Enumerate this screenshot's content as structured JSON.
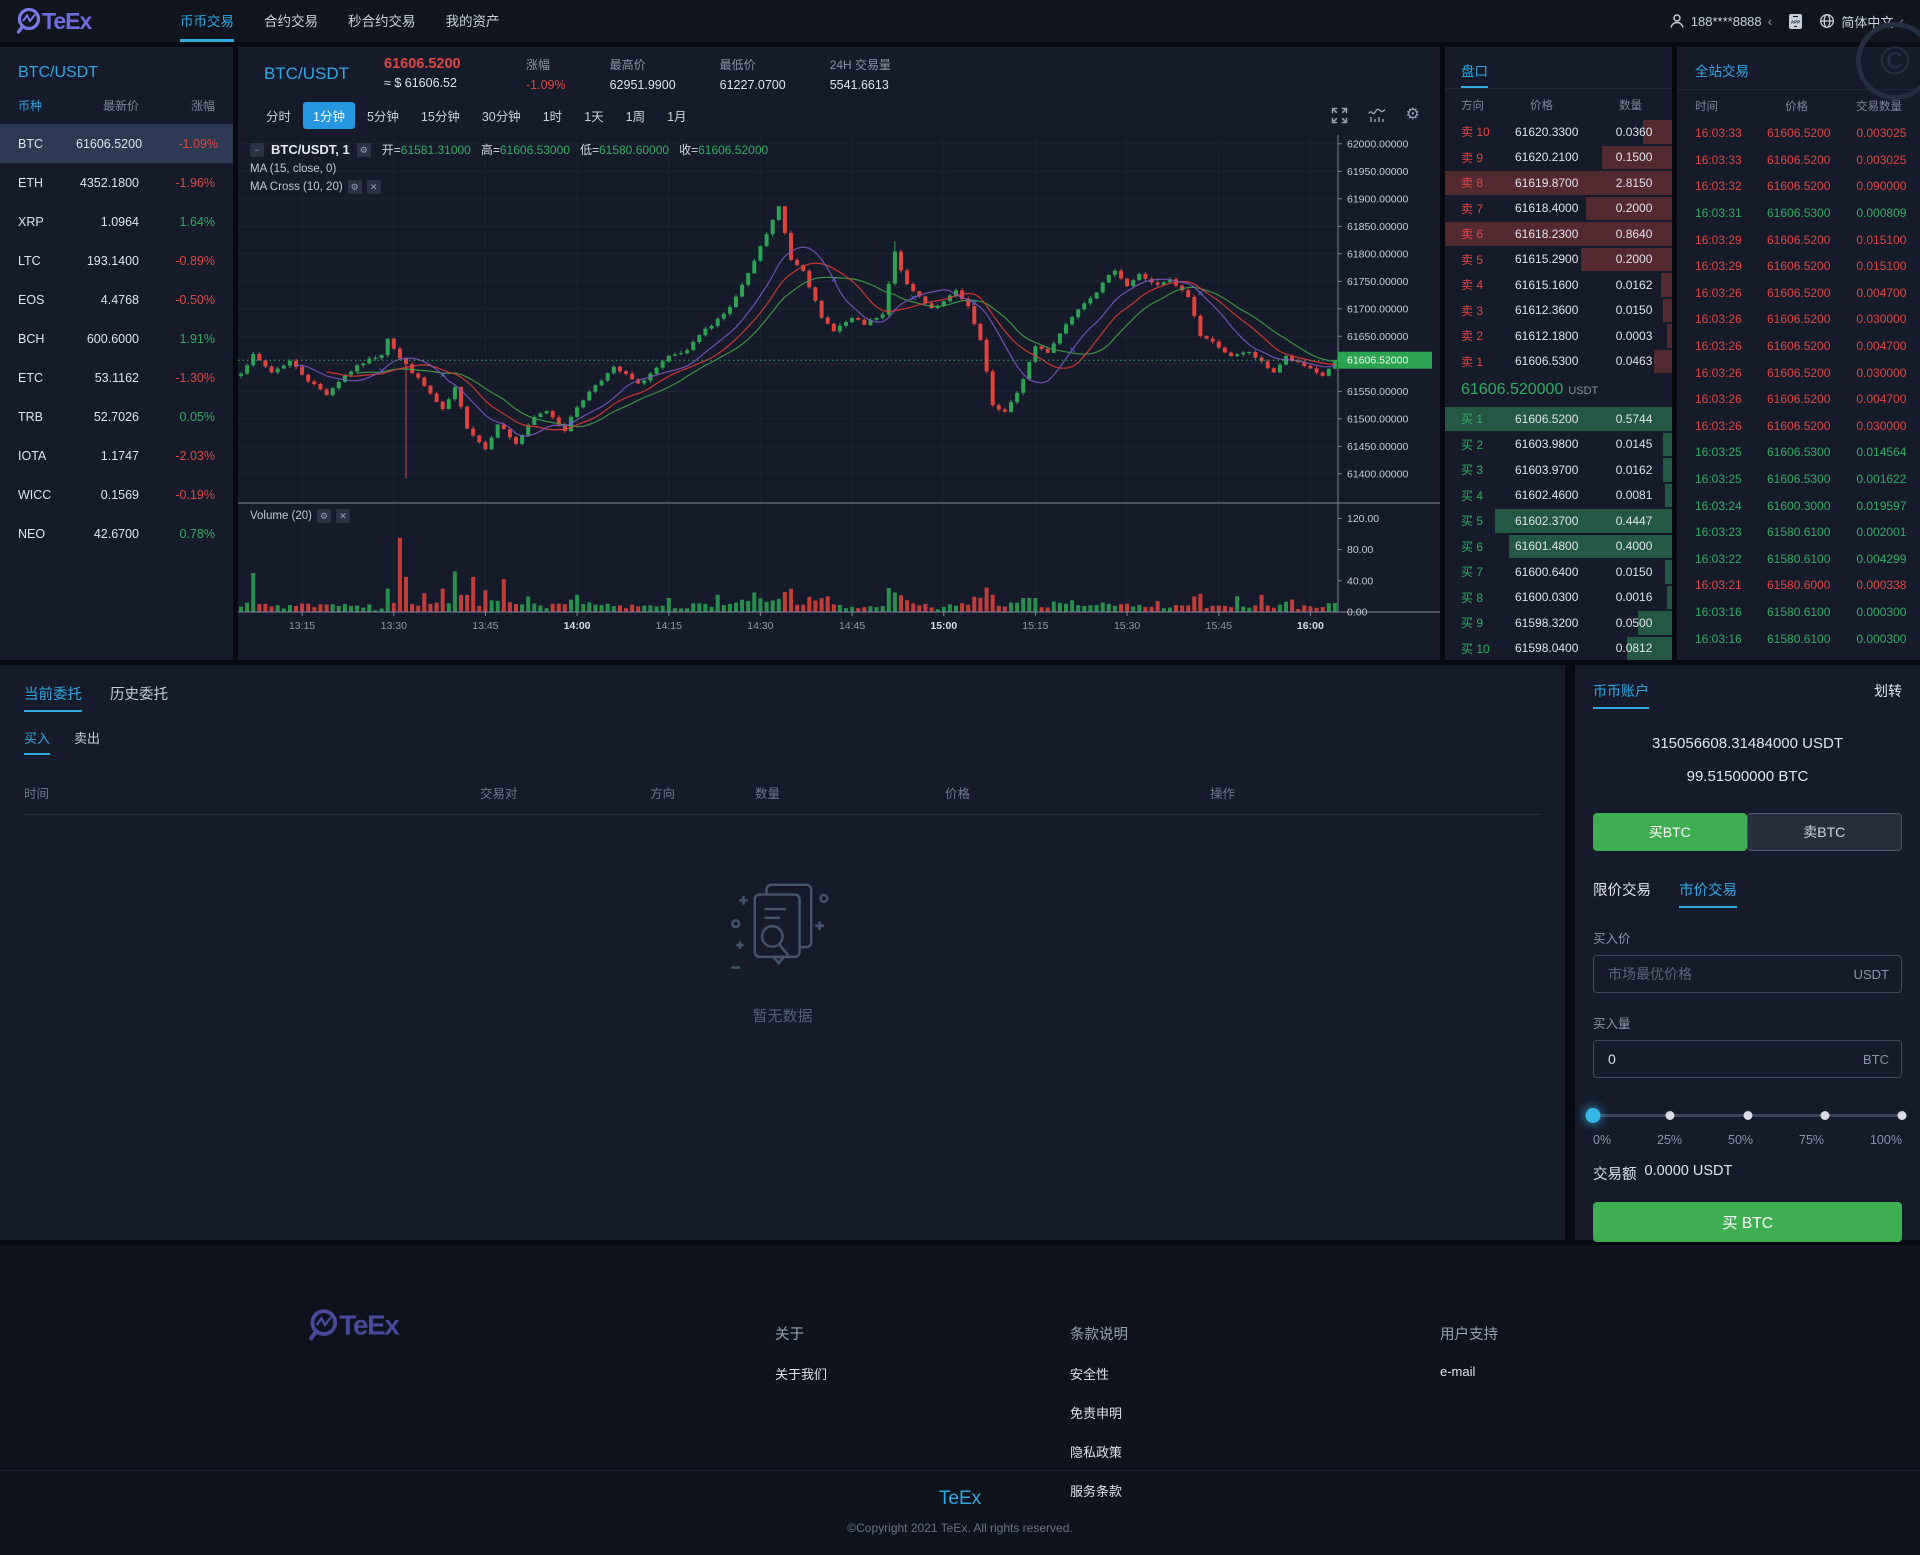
{
  "nav": {
    "brand": "TeEx",
    "items": [
      {
        "label": "币币交易",
        "active": true
      },
      {
        "label": "合约交易",
        "active": false
      },
      {
        "label": "秒合约交易",
        "active": false
      },
      {
        "label": "我的资产",
        "active": false
      }
    ],
    "user_phone": "188****8888",
    "language": "简体中文"
  },
  "watchlist": {
    "title": "BTC/USDT",
    "columns": [
      "币种",
      "最新价",
      "涨幅"
    ],
    "rows": [
      {
        "coin": "BTC",
        "price": "61606.5200",
        "change": "-1.09%",
        "dir": "down",
        "selected": true
      },
      {
        "coin": "ETH",
        "price": "4352.1800",
        "change": "-1.96%",
        "dir": "down",
        "selected": false
      },
      {
        "coin": "XRP",
        "price": "1.0964",
        "change": "1.64%",
        "dir": "up",
        "selected": false
      },
      {
        "coin": "LTC",
        "price": "193.1400",
        "change": "-0.89%",
        "dir": "down",
        "selected": false
      },
      {
        "coin": "EOS",
        "price": "4.4768",
        "change": "-0.50%",
        "dir": "down",
        "selected": false
      },
      {
        "coin": "BCH",
        "price": "600.6000",
        "change": "1.91%",
        "dir": "up",
        "selected": false
      },
      {
        "coin": "ETC",
        "price": "53.1162",
        "change": "-1.30%",
        "dir": "down",
        "selected": false
      },
      {
        "coin": "TRB",
        "price": "52.7026",
        "change": "0.05%",
        "dir": "up",
        "selected": false
      },
      {
        "coin": "IOTA",
        "price": "1.1747",
        "change": "-2.03%",
        "dir": "down",
        "selected": false
      },
      {
        "coin": "WICC",
        "price": "0.1569",
        "change": "-0.19%",
        "dir": "down",
        "selected": false
      },
      {
        "coin": "NEO",
        "price": "42.6700",
        "change": "0.78%",
        "dir": "up",
        "selected": false
      }
    ]
  },
  "market_header": {
    "pair": "BTC/USDT",
    "last_price": "61606.5200",
    "usd_price": "≈ $ 61606.52",
    "stats": [
      {
        "label": "涨幅",
        "value": "-1.09%",
        "dir": "down"
      },
      {
        "label": "最高价",
        "value": "62951.9900",
        "dir": ""
      },
      {
        "label": "最低价",
        "value": "61227.0700",
        "dir": ""
      },
      {
        "label": "24H 交易量",
        "value": "5541.6613",
        "dir": ""
      }
    ]
  },
  "toolbar": {
    "timeframes": [
      "分时",
      "1分钟",
      "5分钟",
      "15分钟",
      "30分钟",
      "1时",
      "1天",
      "1周",
      "1月"
    ],
    "active": "1分钟"
  },
  "chart": {
    "legend": {
      "symbol": "BTC/USDT, 1",
      "open_label": "开",
      "open": "61581.31000",
      "high_label": "高",
      "high": "61606.53000",
      "low_label": "低",
      "low": "61580.60000",
      "close_label": "收",
      "close": "61606.52000"
    },
    "indicators": [
      "MA (15, close, 0)",
      "MA Cross (10, 20)"
    ],
    "volume_label": "Volume (20)",
    "chart_data": {
      "type": "candlestick",
      "interval_minutes": 1,
      "start_time": "13:05",
      "x_ticks": [
        "13:15",
        "13:30",
        "13:45",
        "14:00",
        "14:15",
        "14:30",
        "14:45",
        "15:00",
        "15:15",
        "15:30",
        "15:45",
        "16:00"
      ],
      "x_ticks_strong": [
        "14:00",
        "15:00",
        "16:00"
      ],
      "y_ticks": [
        62000,
        61950,
        61900,
        61850,
        61800,
        61750,
        61700,
        61650,
        61550,
        61500,
        61450,
        61400
      ],
      "price_range": [
        61316,
        62016
      ],
      "current_price": 61606.52,
      "close_keyframes": [
        [
          0,
          61585
        ],
        [
          2,
          61615
        ],
        [
          5,
          61585
        ],
        [
          8,
          61605
        ],
        [
          11,
          61570
        ],
        [
          14,
          61545
        ],
        [
          17,
          61580
        ],
        [
          20,
          61602
        ],
        [
          23,
          61618
        ],
        [
          24,
          61648
        ],
        [
          26,
          61610
        ],
        [
          27,
          61598
        ],
        [
          30,
          61560
        ],
        [
          33,
          61515
        ],
        [
          35,
          61555
        ],
        [
          37,
          61485
        ],
        [
          40,
          61445
        ],
        [
          42,
          61492
        ],
        [
          45,
          61455
        ],
        [
          48,
          61502
        ],
        [
          50,
          61515
        ],
        [
          53,
          61480
        ],
        [
          55,
          61522
        ],
        [
          58,
          61562
        ],
        [
          61,
          61592
        ],
        [
          63,
          61580
        ],
        [
          65,
          61562
        ],
        [
          68,
          61592
        ],
        [
          70,
          61612
        ],
        [
          73,
          61622
        ],
        [
          75,
          61652
        ],
        [
          78,
          61682
        ],
        [
          80,
          61702
        ],
        [
          83,
          61762
        ],
        [
          85,
          61812
        ],
        [
          88,
          61885
        ],
        [
          90,
          61790
        ],
        [
          92,
          61772
        ],
        [
          95,
          61682
        ],
        [
          97,
          61662
        ],
        [
          100,
          61682
        ],
        [
          102,
          61672
        ],
        [
          105,
          61688
        ],
        [
          107,
          61802
        ],
        [
          109,
          61742
        ],
        [
          111,
          61722
        ],
        [
          113,
          61702
        ],
        [
          115,
          61712
        ],
        [
          117,
          61732
        ],
        [
          119,
          61702
        ],
        [
          121,
          61642
        ],
        [
          123,
          61525
        ],
        [
          125,
          61512
        ],
        [
          127,
          61545
        ],
        [
          130,
          61632
        ],
        [
          132,
          61622
        ],
        [
          135,
          61672
        ],
        [
          137,
          61702
        ],
        [
          140,
          61732
        ],
        [
          143,
          61772
        ],
        [
          145,
          61742
        ],
        [
          147,
          61762
        ],
        [
          150,
          61742
        ],
        [
          152,
          61752
        ],
        [
          155,
          61722
        ],
        [
          157,
          61652
        ],
        [
          160,
          61632
        ],
        [
          162,
          61612
        ],
        [
          165,
          61622
        ],
        [
          167,
          61602
        ],
        [
          169,
          61585
        ],
        [
          171,
          61612
        ],
        [
          173,
          61600
        ],
        [
          175,
          61592
        ],
        [
          177,
          61578
        ],
        [
          179,
          61606.52
        ]
      ],
      "wick_overrides": {
        "27": {
          "low": 61392
        },
        "107": {
          "high": 61823
        }
      },
      "volume_ticks": [
        120,
        80,
        40,
        0
      ],
      "volume_spikes": {
        "2": 50,
        "24": 30,
        "26": 95,
        "27": 45,
        "30": 24,
        "33": 30,
        "35": 52,
        "38": 45,
        "40": 28,
        "43": 42,
        "47": 20,
        "55": 22,
        "70": 18,
        "78": 22,
        "84": 25,
        "96": 20,
        "107": 25,
        "123": 22,
        "136": 15,
        "150": 14,
        "163": 20,
        "167": 22,
        "172": 16
      },
      "ma_periods": {
        "ma": 15,
        "cross_fast": 10,
        "cross_slow": 20
      },
      "colors": {
        "up": "#2ca352",
        "down": "#e0433d",
        "ma15": "#e53935",
        "ma10": "#7e57c2",
        "ma20": "#43a047"
      }
    }
  },
  "order_book": {
    "title": "盘口",
    "columns": [
      "方向",
      "价格",
      "数量"
    ],
    "sell_label": "卖",
    "buy_label": "买",
    "asks": [
      {
        "level": 10,
        "price": "61620.3300",
        "amount": "0.0360",
        "depth": 0.13
      },
      {
        "level": 9,
        "price": "61620.2100",
        "amount": "0.1500",
        "depth": 0.31
      },
      {
        "level": 8,
        "price": "61619.8700",
        "amount": "2.8150",
        "depth": 1
      },
      {
        "level": 7,
        "price": "61618.4000",
        "amount": "0.2000",
        "depth": 0.38
      },
      {
        "level": 6,
        "price": "61618.2300",
        "amount": "0.8640",
        "depth": 1
      },
      {
        "level": 5,
        "price": "61615.2900",
        "amount": "0.2000",
        "depth": 0.4
      },
      {
        "level": 4,
        "price": "61615.1600",
        "amount": "0.0162",
        "depth": 0.05
      },
      {
        "level": 3,
        "price": "61612.3600",
        "amount": "0.0150",
        "depth": 0.04
      },
      {
        "level": 2,
        "price": "61612.1800",
        "amount": "0.0003",
        "depth": 0.02
      },
      {
        "level": 1,
        "price": "61606.5300",
        "amount": "0.0463",
        "depth": 0.08
      }
    ],
    "mid_price": "61606.520000",
    "mid_unit": "USDT",
    "bids": [
      {
        "level": 1,
        "price": "61606.5200",
        "amount": "0.5744",
        "depth": 1
      },
      {
        "level": 2,
        "price": "61603.9800",
        "amount": "0.0145",
        "depth": 0.04
      },
      {
        "level": 3,
        "price": "61603.9700",
        "amount": "0.0162",
        "depth": 0.04
      },
      {
        "level": 4,
        "price": "61602.4600",
        "amount": "0.0081",
        "depth": 0.03
      },
      {
        "level": 5,
        "price": "61602.3700",
        "amount": "0.4447",
        "depth": 0.78
      },
      {
        "level": 6,
        "price": "61601.4800",
        "amount": "0.4000",
        "depth": 0.72
      },
      {
        "level": 7,
        "price": "61600.6400",
        "amount": "0.0150",
        "depth": 0.03
      },
      {
        "level": 8,
        "price": "61600.0300",
        "amount": "0.0016",
        "depth": 0.02
      },
      {
        "level": 9,
        "price": "61598.3200",
        "amount": "0.0500",
        "depth": 0.15
      },
      {
        "level": 10,
        "price": "61598.0400",
        "amount": "0.0812",
        "depth": 0.2
      }
    ]
  },
  "trades": {
    "title": "全站交易",
    "columns": [
      "时间",
      "价格",
      "交易数量"
    ],
    "rows": [
      {
        "time": "16:03:33",
        "price": "61606.5200",
        "amount": "0.003025",
        "side": "down"
      },
      {
        "time": "16:03:33",
        "price": "61606.5200",
        "amount": "0.003025",
        "side": "down"
      },
      {
        "time": "16:03:32",
        "price": "61606.5200",
        "amount": "0.090000",
        "side": "down"
      },
      {
        "time": "16:03:31",
        "price": "61606.5300",
        "amount": "0.000809",
        "side": "up"
      },
      {
        "time": "16:03:29",
        "price": "61606.5200",
        "amount": "0.015100",
        "side": "down"
      },
      {
        "time": "16:03:29",
        "price": "61606.5200",
        "amount": "0.015100",
        "side": "down"
      },
      {
        "time": "16:03:26",
        "price": "61606.5200",
        "amount": "0.004700",
        "side": "down"
      },
      {
        "time": "16:03:26",
        "price": "61606.5200",
        "amount": "0.030000",
        "side": "down"
      },
      {
        "time": "16:03:26",
        "price": "61606.5200",
        "amount": "0.004700",
        "side": "down"
      },
      {
        "time": "16:03:26",
        "price": "61606.5200",
        "amount": "0.030000",
        "side": "down"
      },
      {
        "time": "16:03:26",
        "price": "61606.5200",
        "amount": "0.004700",
        "side": "down"
      },
      {
        "time": "16:03:26",
        "price": "61606.5200",
        "amount": "0.030000",
        "side": "down"
      },
      {
        "time": "16:03:25",
        "price": "61606.5300",
        "amount": "0.014564",
        "side": "up"
      },
      {
        "time": "16:03:25",
        "price": "61606.5300",
        "amount": "0.001622",
        "side": "up"
      },
      {
        "time": "16:03:24",
        "price": "61600.3000",
        "amount": "0.019597",
        "side": "up"
      },
      {
        "time": "16:03:23",
        "price": "61580.6100",
        "amount": "0.002001",
        "side": "up"
      },
      {
        "time": "16:03:22",
        "price": "61580.6100",
        "amount": "0.004299",
        "side": "up"
      },
      {
        "time": "16:03:21",
        "price": "61580.6000",
        "amount": "0.000338",
        "side": "down"
      },
      {
        "time": "16:03:16",
        "price": "61580.6100",
        "amount": "0.000300",
        "side": "up"
      },
      {
        "time": "16:03:16",
        "price": "61580.6100",
        "amount": "0.000300",
        "side": "up"
      }
    ]
  },
  "orders": {
    "tabs": [
      {
        "label": "当前委托",
        "active": true
      },
      {
        "label": "历史委托",
        "active": false
      }
    ],
    "side_tabs": [
      {
        "label": "买入",
        "active": true
      },
      {
        "label": "卖出",
        "active": false
      }
    ],
    "columns": [
      "时间",
      "交易对",
      "方向",
      "数量",
      "价格",
      "操作"
    ],
    "empty_text": "暂无数据"
  },
  "account": {
    "title": "币币账户",
    "transfer": "划转",
    "balance_usdt": "315056608.31484000 USDT",
    "balance_btc": "99.51500000 BTC",
    "buy_toggle": "买BTC",
    "sell_toggle": "卖BTC",
    "limit_tab": "限价交易",
    "market_tab": "市价交易",
    "buy_price_label": "买入价",
    "buy_price_placeholder": "市场最优价格",
    "buy_price_unit": "USDT",
    "buy_amount_label": "买入量",
    "buy_amount_value": "0",
    "buy_amount_unit": "BTC",
    "slider_labels": [
      "0%",
      "25%",
      "50%",
      "75%",
      "100%"
    ],
    "slider_value": 0,
    "total_label": "交易额",
    "total_value": "0.0000 USDT",
    "submit_label": "买 BTC"
  },
  "footer": {
    "columns": [
      {
        "title": "关于",
        "links": [
          "关于我们"
        ]
      },
      {
        "title": "条款说明",
        "links": [
          "安全性",
          "免责申明",
          "隐私政策",
          "服务条款"
        ]
      },
      {
        "title": "用户支持",
        "links": [
          "e-mail"
        ]
      }
    ],
    "brand": "TeEx",
    "copyright": "©Copyright 2021 TeEx. All rights reserved."
  }
}
